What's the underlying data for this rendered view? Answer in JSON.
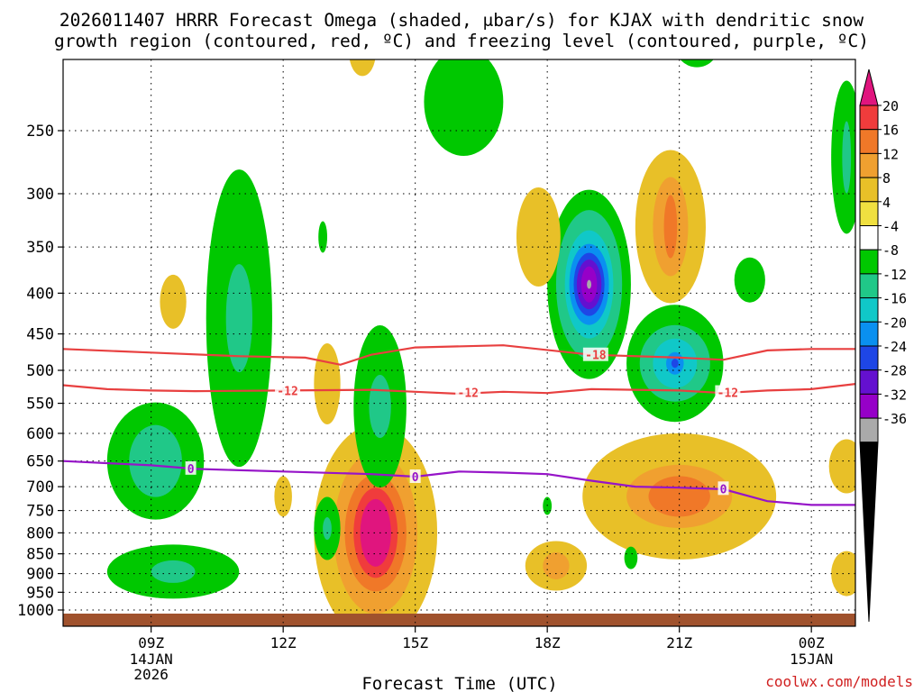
{
  "chart_data": {
    "type": "heatmap",
    "title_line1": "2026011407 HRRR Forecast Omega (shaded, μbar/s) for KJAX with dendritic snow",
    "title_line2": "growth region (contoured, red, ºC) and freezing level (contoured, purple, ºC)",
    "xlabel": "Forecast Time (UTC)",
    "credit": "coolwx.com/models",
    "x_range_hours": [
      7,
      25
    ],
    "x_ticks": [
      {
        "hour": 9,
        "label": "09Z",
        "sub1": "14JAN",
        "sub2": "2026"
      },
      {
        "hour": 12,
        "label": "12Z",
        "sub1": "",
        "sub2": ""
      },
      {
        "hour": 15,
        "label": "15Z",
        "sub1": "",
        "sub2": ""
      },
      {
        "hour": 18,
        "label": "18Z",
        "sub1": "",
        "sub2": ""
      },
      {
        "hour": 21,
        "label": "21Z",
        "sub1": "",
        "sub2": ""
      },
      {
        "hour": 24,
        "label": "00Z",
        "sub1": "15JAN",
        "sub2": ""
      }
    ],
    "y_ticks_hpa": [
      250,
      300,
      350,
      400,
      450,
      500,
      550,
      600,
      650,
      700,
      750,
      800,
      850,
      900,
      950,
      1000
    ],
    "colorbar": {
      "labels": [
        "20",
        "16",
        "12",
        "8",
        "4",
        "-4",
        "-8",
        "-12",
        "-16",
        "-20",
        "-24",
        "-28",
        "-32",
        "-36"
      ],
      "colors": [
        "#e0157e",
        "#f03c3c",
        "#f07828",
        "#f0a030",
        "#e8c028",
        "#f0e040",
        "#ffffff",
        "#00c800",
        "#20c888",
        "#10c8c8",
        "#0a90f0",
        "#1e46e6",
        "#6410d0",
        "#9600c8",
        "#aaaaaa",
        "#000000"
      ]
    },
    "contours": [
      {
        "name": "dgz-minus18",
        "color": "#e84040",
        "label": "-18",
        "x": [
          7,
          9,
          11,
          12.5,
          13.3,
          14,
          15,
          17,
          19,
          21,
          22,
          23,
          24,
          25
        ],
        "p": [
          470,
          475,
          480,
          482,
          492,
          478,
          468,
          465,
          478,
          482,
          485,
          472,
          470,
          470
        ]
      },
      {
        "name": "dgz-minus12",
        "color": "#e84040",
        "label": "-12",
        "x": [
          7,
          8,
          9,
          10,
          12,
          14,
          15,
          16,
          17,
          18,
          19,
          20,
          21,
          22,
          23,
          24,
          25
        ],
        "p": [
          522,
          528,
          530,
          531,
          530,
          529,
          532,
          535,
          532,
          534,
          528,
          529,
          530,
          534,
          530,
          528,
          520
        ]
      },
      {
        "name": "freezing-level",
        "color": "#9614c8",
        "label": "0",
        "x": [
          7,
          9,
          10,
          12,
          14,
          15,
          16,
          17,
          18,
          19,
          20,
          21,
          22,
          23,
          24,
          25
        ],
        "p": [
          650,
          658,
          665,
          670,
          675,
          680,
          670,
          672,
          675,
          688,
          700,
          702,
          705,
          730,
          738,
          738
        ]
      }
    ],
    "contour_labels": [
      {
        "text": "-18",
        "x": 19.1,
        "p": 478
      },
      {
        "text": "-12",
        "x": 12.1,
        "p": 530
      },
      {
        "text": "-12",
        "x": 16.2,
        "p": 533
      },
      {
        "text": "-12",
        "x": 22.1,
        "p": 533
      },
      {
        "text": "0",
        "x": 9.9,
        "p": 664
      },
      {
        "text": "0",
        "x": 15.0,
        "p": 680
      },
      {
        "text": "0",
        "x": 22.0,
        "p": 704
      }
    ],
    "omega_features": [
      {
        "x": 18.95,
        "p": 390,
        "layers": [
          [
            "#00c800",
            0.95,
            210
          ],
          [
            "#20c888",
            0.75,
            165
          ],
          [
            "#10c8c8",
            0.55,
            120
          ],
          [
            "#0a90f0",
            0.45,
            90
          ],
          [
            "#1e46e6",
            0.35,
            70
          ],
          [
            "#6410d0",
            0.28,
            55
          ],
          [
            "#9600c8",
            0.18,
            40
          ],
          [
            "#aaaaaa",
            0.05,
            10
          ]
        ]
      },
      {
        "x": 20.9,
        "p": 490,
        "layers": [
          [
            "#00c800",
            1.1,
            130
          ],
          [
            "#20c888",
            0.8,
            85
          ],
          [
            "#10c8c8",
            0.5,
            55
          ],
          [
            "#0a90f0",
            0.2,
            25
          ],
          [
            "#1e46e6",
            0.08,
            10
          ]
        ]
      },
      {
        "x": 14.1,
        "p": 800,
        "layers": [
          [
            "#e8c028",
            1.4,
            240
          ],
          [
            "#f0a030",
            0.95,
            180
          ],
          [
            "#f07828",
            0.7,
            130
          ],
          [
            "#f03c3c",
            0.5,
            100
          ],
          [
            "#e0157e",
            0.35,
            75
          ]
        ]
      },
      {
        "x": 14.2,
        "p": 555,
        "layers": [
          [
            "#00c800",
            0.6,
            180
          ],
          [
            "#20c888",
            0.25,
            70
          ]
        ]
      },
      {
        "x": 11.0,
        "p": 430,
        "layers": [
          [
            "#00c800",
            0.75,
            330
          ],
          [
            "#20c888",
            0.3,
            120
          ]
        ]
      },
      {
        "x": 9.1,
        "p": 650,
        "layers": [
          [
            "#00c800",
            1.1,
            130
          ],
          [
            "#20c888",
            0.6,
            80
          ]
        ]
      },
      {
        "x": 9.5,
        "p": 895,
        "layers": [
          [
            "#00c800",
            1.5,
            60
          ],
          [
            "#20c888",
            0.5,
            25
          ]
        ]
      },
      {
        "x": 21.0,
        "p": 720,
        "layers": [
          [
            "#e8c028",
            2.2,
            140
          ],
          [
            "#f0a030",
            1.2,
            70
          ],
          [
            "#f07828",
            0.7,
            45
          ]
        ]
      },
      {
        "x": 20.8,
        "p": 330,
        "layers": [
          [
            "#e8c028",
            0.8,
            170
          ],
          [
            "#f0a030",
            0.4,
            110
          ],
          [
            "#f07828",
            0.15,
            70
          ]
        ]
      },
      {
        "x": 18.2,
        "p": 880,
        "layers": [
          [
            "#e8c028",
            0.7,
            55
          ],
          [
            "#f0a030",
            0.3,
            30
          ]
        ]
      },
      {
        "x": 16.1,
        "p": 230,
        "layers": [
          [
            "#00c800",
            0.9,
            120
          ]
        ]
      },
      {
        "x": 17.8,
        "p": 340,
        "layers": [
          [
            "#e8c028",
            0.5,
            110
          ]
        ]
      },
      {
        "x": 9.5,
        "p": 410,
        "layers": [
          [
            "#e8c028",
            0.3,
            60
          ]
        ]
      },
      {
        "x": 13.0,
        "p": 520,
        "layers": [
          [
            "#e8c028",
            0.3,
            90
          ]
        ]
      },
      {
        "x": 12.0,
        "p": 720,
        "layers": [
          [
            "#e8c028",
            0.2,
            45
          ]
        ]
      },
      {
        "x": 13.0,
        "p": 790,
        "layers": [
          [
            "#00c800",
            0.3,
            70
          ],
          [
            "#20c888",
            0.1,
            25
          ]
        ]
      },
      {
        "x": 13.8,
        "p": 200,
        "layers": [
          [
            "#e8c028",
            0.3,
            50
          ]
        ]
      },
      {
        "x": 22.6,
        "p": 385,
        "layers": [
          [
            "#00c800",
            0.35,
            50
          ]
        ]
      },
      {
        "x": 21.4,
        "p": 195,
        "layers": [
          [
            "#00c800",
            0.5,
            50
          ]
        ]
      },
      {
        "x": 24.8,
        "p": 270,
        "layers": [
          [
            "#00c800",
            0.35,
            170
          ],
          [
            "#20c888",
            0.1,
            80
          ]
        ]
      },
      {
        "x": 24.8,
        "p": 660,
        "layers": [
          [
            "#e8c028",
            0.4,
            60
          ]
        ]
      },
      {
        "x": 24.8,
        "p": 900,
        "layers": [
          [
            "#e8c028",
            0.35,
            50
          ]
        ]
      },
      {
        "x": 19.9,
        "p": 860,
        "layers": [
          [
            "#00c800",
            0.15,
            25
          ]
        ]
      },
      {
        "x": 18.0,
        "p": 740,
        "layers": [
          [
            "#00c800",
            0.1,
            20
          ]
        ]
      },
      {
        "x": 12.9,
        "p": 340,
        "layers": [
          [
            "#00c800",
            0.1,
            35
          ]
        ]
      }
    ]
  }
}
